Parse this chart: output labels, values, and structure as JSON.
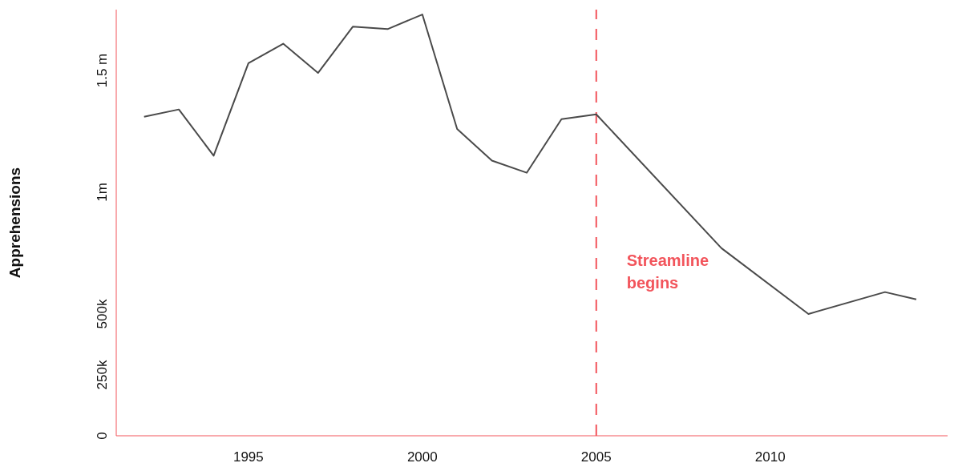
{
  "chart_data": {
    "type": "line",
    "ylabel": "Apprehensions",
    "x": [
      1992,
      1993,
      1994,
      1995,
      1996,
      1997,
      1998,
      1999,
      2000,
      2001,
      2002,
      2003,
      2004,
      2005,
      2008.6,
      2011.1,
      2013.3,
      2014.2
    ],
    "series": [
      {
        "color": "#4a4a4a",
        "values": [
          1310000,
          1340000,
          1150000,
          1530000,
          1610000,
          1490000,
          1680000,
          1670000,
          1730000,
          1260000,
          1130000,
          1080000,
          1300000,
          1320000,
          770000,
          500000,
          590000,
          560000
        ]
      }
    ],
    "xlim": [
      1991.2,
      2015.1
    ],
    "xticks": [
      1995,
      2000,
      2005,
      2010
    ],
    "ylim": [
      0,
      1750000
    ],
    "yticks": [
      {
        "value": 0,
        "label": "0"
      },
      {
        "value": 250000,
        "label": "250k"
      },
      {
        "value": 500000,
        "label": "500k"
      },
      {
        "value": 1000000,
        "label": "1m"
      },
      {
        "value": 1500000,
        "label": "1.5 m"
      }
    ],
    "ref_lines": [
      {
        "axis": "x",
        "value": 2005,
        "label": "Streamline begins",
        "color": "#f2545b",
        "line_style": "dashed"
      }
    ],
    "grid": false,
    "marker": "none",
    "line_style": "solid"
  }
}
